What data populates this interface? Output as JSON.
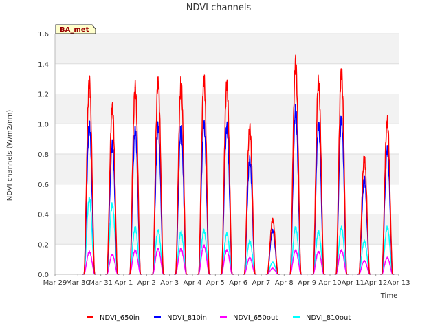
{
  "chart_data": {
    "type": "line",
    "title": "NDVI channels",
    "xlabel": "Time",
    "ylabel": "NDVI channels (W/m2/nm)",
    "badge": "BA_met",
    "ylim": [
      0.0,
      1.6
    ],
    "yticks": [
      "0.0",
      "0.2",
      "0.4",
      "0.6",
      "0.8",
      "1.0",
      "1.2",
      "1.4",
      "1.6"
    ],
    "xlim_days": [
      0,
      15
    ],
    "xticks": [
      "Mar 29",
      "Mar 30",
      "Mar 31",
      "Apr 1",
      "Apr 2",
      "Apr 3",
      "Apr 4",
      "Apr 5",
      "Apr 6",
      "Apr 7",
      "Apr 8",
      "Apr 9",
      "Apr 10",
      "Apr 11",
      "Apr 12",
      "Apr 13"
    ],
    "grid": true,
    "legend_position": "bottom",
    "daily_noon_peaks": {
      "days": [
        "Mar 30",
        "Mar 31",
        "Apr 1",
        "Apr 2",
        "Apr 3",
        "Apr 4",
        "Apr 5",
        "Apr 6",
        "Apr 7",
        "Apr 8",
        "Apr 9",
        "Apr 10",
        "Apr 11",
        "Apr 12"
      ],
      "day_offsets": [
        1,
        2,
        3,
        4,
        5,
        6,
        7,
        8,
        9,
        10,
        11,
        12,
        13,
        14
      ],
      "series": [
        {
          "name": "NDVI_650in",
          "color": "#ff0000",
          "values": [
            1.28,
            1.11,
            1.24,
            1.28,
            1.27,
            1.3,
            1.26,
            0.97,
            0.36,
            1.41,
            1.28,
            1.34,
            0.77,
            1.02
          ]
        },
        {
          "name": "NDVI_810in",
          "color": "#0000ff",
          "values": [
            0.99,
            0.86,
            0.96,
            0.98,
            0.97,
            1.0,
            0.98,
            0.76,
            0.29,
            1.09,
            0.99,
            1.03,
            0.63,
            0.83
          ]
        },
        {
          "name": "NDVI_650out",
          "color": "#ff00ff",
          "values": [
            0.15,
            0.13,
            0.16,
            0.17,
            0.17,
            0.19,
            0.16,
            0.11,
            0.04,
            0.16,
            0.15,
            0.16,
            0.09,
            0.11
          ]
        },
        {
          "name": "NDVI_810out",
          "color": "#00ffff",
          "values": [
            0.5,
            0.46,
            0.31,
            0.29,
            0.28,
            0.29,
            0.27,
            0.22,
            0.08,
            0.31,
            0.28,
            0.31,
            0.22,
            0.31
          ]
        }
      ]
    }
  }
}
